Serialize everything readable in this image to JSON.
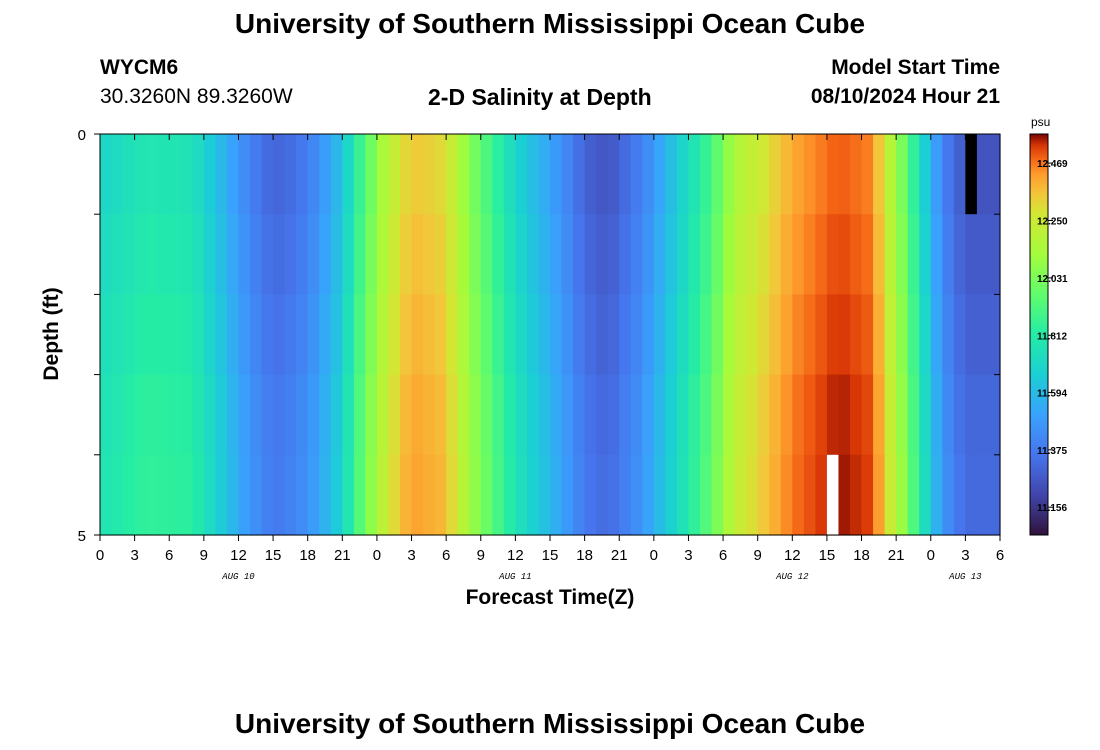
{
  "header": {
    "title": "University of Southern Mississippi Ocean Cube",
    "station_id": "WYCM6",
    "station_coords": "30.3260N  89.3260W",
    "chart_title": "2-D Salinity at Depth",
    "model_start_label": "Model Start Time",
    "model_start_value": "08/10/2024 Hour 21"
  },
  "footer": {
    "title": "University of Southern Mississippi Ocean Cube"
  },
  "chart_data": {
    "type": "heatmap",
    "title": "2-D Salinity at Depth",
    "xlabel": "Forecast Time(Z)",
    "ylabel": "Depth (ft)",
    "x_tick_labels": [
      "0",
      "3",
      "6",
      "9",
      "12",
      "15",
      "18",
      "21",
      "0",
      "3",
      "6",
      "9",
      "12",
      "15",
      "18",
      "21",
      "0",
      "3",
      "6",
      "9",
      "12",
      "15",
      "18",
      "21",
      "0",
      "3",
      "6"
    ],
    "x_hours_range": [
      0,
      78
    ],
    "day_labels": [
      {
        "text": "AUG 10",
        "hour": 12
      },
      {
        "text": "AUG 11",
        "hour": 36
      },
      {
        "text": "AUG 12",
        "hour": 60
      },
      {
        "text": "AUG 13",
        "hour": 75
      }
    ],
    "y_tick_labels": [
      "0",
      "5"
    ],
    "ylim": [
      0,
      5
    ],
    "depth_levels": 5,
    "colorbar": {
      "unit": "psu",
      "tick_labels": [
        "12.469",
        "12.250",
        "12.031",
        "11.812",
        "11.594",
        "11.375",
        "11.156"
      ],
      "vmin": 11.05,
      "vmax": 12.58
    },
    "time_step_hours": 1,
    "profile_anchors": {
      "hours": [
        0,
        4,
        8,
        10,
        13,
        15,
        17,
        19,
        21,
        22,
        25,
        27,
        30,
        32,
        36,
        40,
        42,
        44,
        47,
        50,
        53,
        55,
        60,
        64,
        67,
        68,
        70,
        71,
        73,
        75,
        78
      ],
      "salinity": [
        11.7,
        11.78,
        11.76,
        11.62,
        11.4,
        11.3,
        11.34,
        11.45,
        11.62,
        11.8,
        12.2,
        12.35,
        12.3,
        12.05,
        11.7,
        11.45,
        11.3,
        11.25,
        11.4,
        11.65,
        11.9,
        12.15,
        12.4,
        12.5,
        12.45,
        12.25,
        11.95,
        11.75,
        11.4,
        11.25,
        11.25
      ]
    },
    "depth_offsets": [
      0.0,
      0.02,
      0.04,
      0.06,
      0.07
    ],
    "missing_cells": [
      {
        "hour": 75,
        "depth_level": 0,
        "color": "#000000"
      },
      {
        "hour": 63,
        "depth_level": 4,
        "color": "#ffffff"
      }
    ]
  }
}
